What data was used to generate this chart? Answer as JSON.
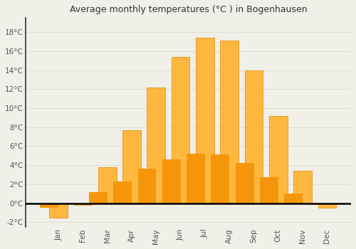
{
  "months": [
    "Jan",
    "Feb",
    "Mar",
    "Apr",
    "May",
    "Jun",
    "Jul",
    "Aug",
    "Sep",
    "Oct",
    "Nov",
    "Dec"
  ],
  "temperatures": [
    -1.5,
    -0.2,
    3.8,
    7.7,
    12.2,
    15.4,
    17.4,
    17.1,
    14.0,
    9.2,
    3.4,
    -0.5
  ],
  "bar_color_top": "#FFB83F",
  "bar_color_bottom": "#F5960A",
  "bar_edge_color": "#E08800",
  "title": "Average monthly temperatures (°C ) in Bogenhausen",
  "ylim": [
    -2.5,
    19.5
  ],
  "yticks": [
    -2,
    0,
    2,
    4,
    6,
    8,
    10,
    12,
    14,
    16,
    18
  ],
  "ytick_labels": [
    "-2°C",
    "0°C",
    "2°C",
    "4°C",
    "6°C",
    "8°C",
    "10°C",
    "12°C",
    "14°C",
    "16°C",
    "18°C"
  ],
  "background_color": "#f0efe8",
  "plot_bg_color": "#f0efe8",
  "grid_color": "#ddddd0",
  "zero_line_color": "#000000",
  "title_fontsize": 9,
  "tick_fontsize": 7.5,
  "bar_width": 0.75
}
